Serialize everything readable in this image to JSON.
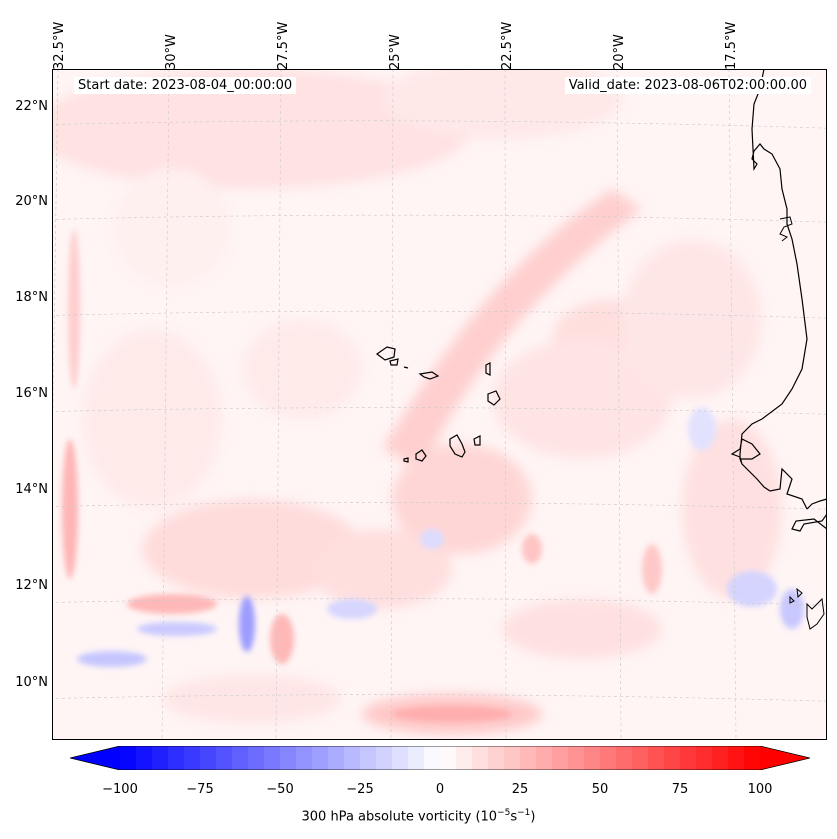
{
  "map": {
    "start_date": "Start date: 2023-08-04_00:00:00",
    "valid_date": "Valid_date: 2023-08-06T02:00:00.00",
    "lon_labels": [
      "32.5°W",
      "30°W",
      "27.5°W",
      "25°W",
      "22.5°W",
      "20°W",
      "17.5°W"
    ],
    "lat_labels": [
      "22°N",
      "20°N",
      "18°N",
      "16°N",
      "14°N",
      "12°N",
      "10°N"
    ],
    "colors": {
      "coast": "#000000",
      "grid": "#b0b0b0",
      "positive": "#ff0000",
      "negative": "#0000ff",
      "background": "#fff5f5"
    }
  },
  "colorbar": {
    "ticks": [
      "−100",
      "−75",
      "−50",
      "−25",
      "0",
      "25",
      "50",
      "75",
      "100"
    ],
    "label": "300 hPa absolute vorticity (10",
    "label_exp1": "−5",
    "label_mid": "s",
    "label_exp2": "−1",
    "label_end": ")",
    "range": [
      -100,
      100
    ],
    "cmap": "bwr"
  }
}
